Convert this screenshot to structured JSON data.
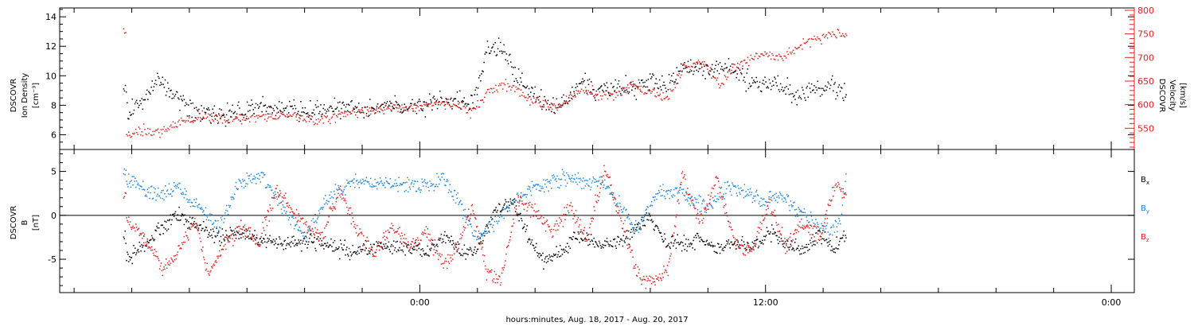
{
  "chart_data": [
    {
      "type": "scatter",
      "panel": "plasma",
      "ylabel_left": [
        "DSCOVR",
        "Ion Density",
        "[cm⁻³]"
      ],
      "ylabel_right": [
        "DSCOVR",
        "Velocity",
        "[km/s]"
      ],
      "left_axis": {
        "ylim": [
          5.0,
          14.6
        ],
        "ticks": [
          6,
          8,
          10,
          12,
          14
        ]
      },
      "right_axis": {
        "ylim": [
          505,
          805
        ],
        "ticks": [
          550,
          600,
          650,
          700,
          750,
          800
        ]
      },
      "colors": {
        "density": "#000000",
        "velocity": "#e8201c"
      },
      "data_x_range_hours": [
        -10.3,
        14.8
      ],
      "series": [
        {
          "axis": "left",
          "key": "density",
          "values": [
            [
              -10.2,
              7.4
            ],
            [
              -9.8,
              7.9
            ],
            [
              -9.5,
              8.6
            ],
            [
              -9.1,
              9.8
            ],
            [
              -8.7,
              9.2
            ],
            [
              -8.3,
              8.1
            ],
            [
              -7.8,
              7.6
            ],
            [
              -7.0,
              7.3
            ],
            [
              -6.0,
              7.7
            ],
            [
              -5.0,
              7.8
            ],
            [
              -4.0,
              7.6
            ],
            [
              -3.0,
              7.8
            ],
            [
              -2.0,
              7.6
            ],
            [
              -1.0,
              7.9
            ],
            [
              -0.2,
              7.9
            ],
            [
              0.5,
              8.2
            ],
            [
              1.2,
              8.3
            ],
            [
              1.8,
              8.0
            ],
            [
              2.3,
              11.5
            ],
            [
              2.8,
              12.0
            ],
            [
              3.3,
              10.0
            ],
            [
              4.0,
              8.6
            ],
            [
              4.6,
              7.9
            ],
            [
              5.1,
              8.3
            ],
            [
              5.6,
              9.6
            ],
            [
              6.1,
              9.0
            ],
            [
              6.8,
              9.4
            ],
            [
              7.5,
              9.2
            ],
            [
              8.1,
              9.5
            ],
            [
              8.6,
              9.3
            ],
            [
              9.2,
              10.8
            ],
            [
              10.0,
              10.2
            ],
            [
              10.6,
              10.6
            ],
            [
              11.2,
              10.0
            ],
            [
              11.8,
              9.3
            ],
            [
              12.4,
              9.6
            ],
            [
              13.0,
              8.7
            ],
            [
              13.6,
              8.9
            ],
            [
              14.2,
              9.3
            ],
            [
              14.7,
              9.0
            ]
          ]
        },
        {
          "axis": "right",
          "key": "velocity",
          "values": [
            [
              -10.2,
              535
            ],
            [
              -9.6,
              545
            ],
            [
              -9.0,
              540
            ],
            [
              -8.3,
              565
            ],
            [
              -7.6,
              575
            ],
            [
              -6.8,
              570
            ],
            [
              -6.0,
              572
            ],
            [
              -5.2,
              575
            ],
            [
              -4.4,
              575
            ],
            [
              -3.6,
              565
            ],
            [
              -2.8,
              580
            ],
            [
              -2.0,
              587
            ],
            [
              -1.2,
              592
            ],
            [
              -0.4,
              593
            ],
            [
              0.3,
              602
            ],
            [
              0.9,
              603
            ],
            [
              1.4,
              598
            ],
            [
              1.8,
              583
            ],
            [
              2.3,
              625
            ],
            [
              2.8,
              643
            ],
            [
              3.3,
              635
            ],
            [
              3.8,
              608
            ],
            [
              4.3,
              598
            ],
            [
              4.8,
              596
            ],
            [
              5.2,
              615
            ],
            [
              5.7,
              633
            ],
            [
              6.3,
              617
            ],
            [
              6.9,
              622
            ],
            [
              7.4,
              642
            ],
            [
              8.0,
              625
            ],
            [
              8.6,
              618
            ],
            [
              9.2,
              685
            ],
            [
              9.8,
              688
            ],
            [
              10.4,
              642
            ],
            [
              10.9,
              683
            ],
            [
              11.5,
              700
            ],
            [
              12.1,
              705
            ],
            [
              12.7,
              705
            ],
            [
              13.3,
              730
            ],
            [
              13.9,
              742
            ],
            [
              14.4,
              752
            ],
            [
              14.7,
              748
            ]
          ]
        }
      ]
    },
    {
      "type": "scatter",
      "panel": "magnetic",
      "ylabel_left": [
        "DSCOVR",
        "B",
        "[nT]"
      ],
      "ylim": [
        -8.8,
        7.5
      ],
      "ticks": [
        -5,
        0,
        5
      ],
      "zero_line": true,
      "legend_position": "right",
      "colors": {
        "bx": "#000000",
        "by": "#1e88e5",
        "bz": "#e8201c"
      },
      "data_x_range_hours": [
        -10.3,
        14.8
      ],
      "series": [
        {
          "key": "bx",
          "legend": "Bx",
          "values": [
            [
              -10.2,
              -5.0
            ],
            [
              -9.6,
              -3.5
            ],
            [
              -9.0,
              -1.5
            ],
            [
              -8.4,
              0.1
            ],
            [
              -7.8,
              -1.2
            ],
            [
              -7.0,
              -2.5
            ],
            [
              -6.2,
              -2.0
            ],
            [
              -5.4,
              -2.8
            ],
            [
              -4.6,
              -3.2
            ],
            [
              -3.8,
              -3.0
            ],
            [
              -3.0,
              -3.6
            ],
            [
              -2.2,
              -4.2
            ],
            [
              -1.4,
              -3.4
            ],
            [
              -0.6,
              -3.8
            ],
            [
              0.2,
              -4.0
            ],
            [
              0.9,
              -2.5
            ],
            [
              1.5,
              -4.4
            ],
            [
              2.0,
              -3.5
            ],
            [
              2.6,
              0.5
            ],
            [
              3.2,
              1.5
            ],
            [
              3.8,
              -2.8
            ],
            [
              4.3,
              -5.2
            ],
            [
              4.9,
              -4.0
            ],
            [
              5.5,
              -2.2
            ],
            [
              6.1,
              -3.0
            ],
            [
              6.7,
              -3.5
            ],
            [
              7.3,
              -2.2
            ],
            [
              7.9,
              -0.2
            ],
            [
              8.5,
              -3.0
            ],
            [
              9.1,
              -3.5
            ],
            [
              9.7,
              -2.6
            ],
            [
              10.3,
              -4.1
            ],
            [
              10.9,
              -3.0
            ],
            [
              11.5,
              -3.8
            ],
            [
              12.1,
              -1.8
            ],
            [
              12.7,
              -3.4
            ],
            [
              13.3,
              -4.0
            ],
            [
              13.9,
              -2.0
            ],
            [
              14.4,
              -3.8
            ],
            [
              14.7,
              -2.5
            ]
          ]
        },
        {
          "key": "by",
          "legend": "By",
          "values": [
            [
              -10.2,
              4.2
            ],
            [
              -9.6,
              3.0
            ],
            [
              -9.0,
              2.6
            ],
            [
              -8.4,
              3.2
            ],
            [
              -7.8,
              1.2
            ],
            [
              -7.0,
              -1.5
            ],
            [
              -6.3,
              3.6
            ],
            [
              -5.5,
              4.6
            ],
            [
              -4.8,
              1.2
            ],
            [
              -4.0,
              -2.5
            ],
            [
              -3.2,
              1.8
            ],
            [
              -2.4,
              3.8
            ],
            [
              -1.6,
              3.6
            ],
            [
              -0.8,
              3.5
            ],
            [
              0.0,
              3.2
            ],
            [
              0.8,
              4.2
            ],
            [
              1.4,
              1.2
            ],
            [
              1.9,
              -2.5
            ],
            [
              2.5,
              -1.0
            ],
            [
              3.2,
              1.5
            ],
            [
              3.9,
              3.2
            ],
            [
              4.5,
              3.8
            ],
            [
              5.1,
              4.4
            ],
            [
              5.7,
              3.6
            ],
            [
              6.3,
              4.0
            ],
            [
              6.9,
              1.2
            ],
            [
              7.5,
              -1.8
            ],
            [
              8.2,
              2.4
            ],
            [
              8.9,
              3.0
            ],
            [
              9.5,
              1.5
            ],
            [
              10.1,
              1.0
            ],
            [
              10.7,
              3.4
            ],
            [
              11.3,
              2.6
            ],
            [
              11.9,
              1.6
            ],
            [
              12.5,
              2.2
            ],
            [
              13.1,
              0.5
            ],
            [
              13.7,
              -1.0
            ],
            [
              14.2,
              -2.0
            ],
            [
              14.6,
              -0.5
            ],
            [
              14.8,
              5.2
            ]
          ]
        },
        {
          "key": "bz",
          "legend": "Bz",
          "values": [
            [
              -10.2,
              0.0
            ],
            [
              -9.8,
              -2.0
            ],
            [
              -9.4,
              -3.5
            ],
            [
              -9.0,
              -6.0
            ],
            [
              -8.6,
              -5.2
            ],
            [
              -8.2,
              -3.0
            ],
            [
              -7.8,
              -0.5
            ],
            [
              -7.4,
              -6.5
            ],
            [
              -6.8,
              -3.4
            ],
            [
              -6.2,
              -1.2
            ],
            [
              -5.6,
              -3.2
            ],
            [
              -5.0,
              3.0
            ],
            [
              -4.5,
              0.5
            ],
            [
              -4.0,
              -1.0
            ],
            [
              -3.4,
              -2.5
            ],
            [
              -2.8,
              3.0
            ],
            [
              -2.2,
              -1.5
            ],
            [
              -1.6,
              -4.5
            ],
            [
              -1.0,
              -1.0
            ],
            [
              -0.4,
              -3.4
            ],
            [
              0.2,
              -2.0
            ],
            [
              0.8,
              -5.6
            ],
            [
              1.4,
              -3.0
            ],
            [
              1.8,
              1.0
            ],
            [
              2.3,
              -6.5
            ],
            [
              2.8,
              -7.3
            ],
            [
              3.4,
              1.8
            ],
            [
              4.0,
              0.5
            ],
            [
              4.6,
              -2.0
            ],
            [
              5.2,
              1.0
            ],
            [
              5.8,
              -2.6
            ],
            [
              6.4,
              5.5
            ],
            [
              7.0,
              -1.0
            ],
            [
              7.6,
              -7.0
            ],
            [
              8.1,
              -7.6
            ],
            [
              8.6,
              -6.0
            ],
            [
              9.1,
              4.8
            ],
            [
              9.7,
              -1.0
            ],
            [
              10.3,
              4.2
            ],
            [
              10.9,
              -3.0
            ],
            [
              11.5,
              -4.2
            ],
            [
              12.1,
              1.5
            ],
            [
              12.7,
              -3.5
            ],
            [
              13.3,
              -0.8
            ],
            [
              13.9,
              -2.5
            ],
            [
              14.4,
              3.5
            ],
            [
              14.8,
              2.0
            ]
          ]
        }
      ]
    }
  ],
  "x_axis": {
    "label": "hours:minutes, Aug. 18, 2017 - Aug. 20, 2017",
    "range_hours": [
      -12.5,
      24.8
    ],
    "major_ticks": [
      {
        "hour": 0,
        "label": "0:00"
      },
      {
        "hour": 12,
        "label": "12:00"
      },
      {
        "hour": 24,
        "label": "0:00"
      }
    ],
    "minor_tick_step_hours": 2
  },
  "legend": {
    "bx": {
      "main": "B",
      "sub": "x"
    },
    "by": {
      "main": "B",
      "sub": "y"
    },
    "bz": {
      "main": "B",
      "sub": "z"
    }
  }
}
